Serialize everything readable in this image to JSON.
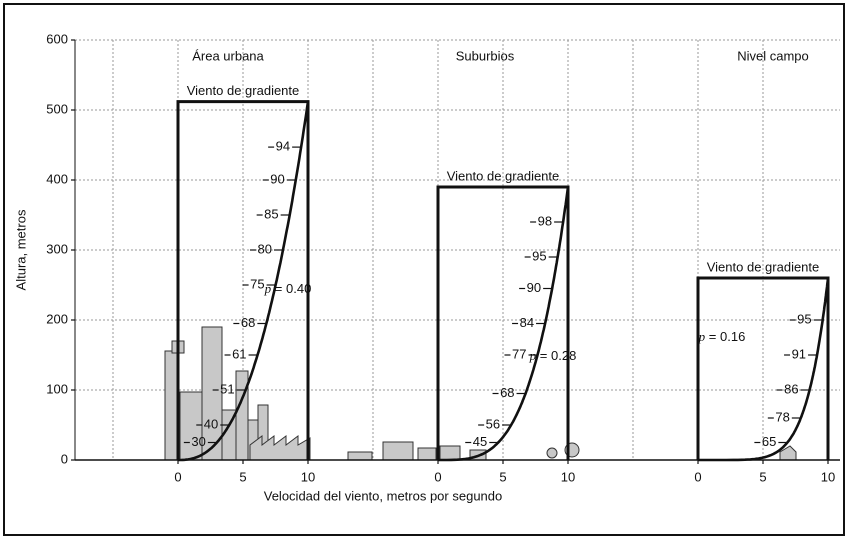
{
  "y_axis": {
    "label": "Altura, metros",
    "lim": [
      0,
      600
    ],
    "ticks": [
      0,
      100,
      200,
      300,
      400,
      500,
      600
    ]
  },
  "x_axis_label": "Velocidad del viento, metros por segundo",
  "p_symbol": "p",
  "equals": "=",
  "panels": [
    {
      "title": "Área urbana",
      "gradient_label": "Viento de gradiente",
      "gradient_height": 512,
      "p": {
        "value": 0.4,
        "label": "0.40"
      },
      "xlim": [
        0,
        10
      ],
      "xticks": [
        0,
        5,
        10
      ],
      "profile": [
        {
          "height": 447,
          "percent": 94
        },
        {
          "height": 400,
          "percent": 90
        },
        {
          "height": 350,
          "percent": 85
        },
        {
          "height": 300,
          "percent": 80
        },
        {
          "height": 250,
          "percent": 75
        },
        {
          "height": 195,
          "percent": 68
        },
        {
          "height": 150,
          "percent": 61
        },
        {
          "height": 100,
          "percent": 51
        },
        {
          "height": 50,
          "percent": 40
        },
        {
          "height": 25,
          "percent": 30
        }
      ]
    },
    {
      "title": "Suburbios",
      "gradient_label": "Viento de gradiente",
      "gradient_height": 390,
      "p": {
        "value": 0.28,
        "label": "0.28"
      },
      "xlim": [
        0,
        10
      ],
      "xticks": [
        0,
        5,
        10
      ],
      "profile": [
        {
          "height": 340,
          "percent": 98
        },
        {
          "height": 290,
          "percent": 95
        },
        {
          "height": 245,
          "percent": 90
        },
        {
          "height": 195,
          "percent": 84
        },
        {
          "height": 150,
          "percent": 77
        },
        {
          "height": 95,
          "percent": 68
        },
        {
          "height": 50,
          "percent": 56
        },
        {
          "height": 25,
          "percent": 45
        }
      ]
    },
    {
      "title": "Nivel campo",
      "gradient_label": "Viento de gradiente",
      "gradient_height": 260,
      "p": {
        "value": 0.16,
        "label": "0.16"
      },
      "xlim": [
        0,
        10
      ],
      "xticks": [
        0,
        5,
        10
      ],
      "profile": [
        {
          "height": 200,
          "percent": 95
        },
        {
          "height": 150,
          "percent": 91
        },
        {
          "height": 100,
          "percent": 86
        },
        {
          "height": 60,
          "percent": 78
        },
        {
          "height": 25,
          "percent": 65
        }
      ]
    }
  ]
}
